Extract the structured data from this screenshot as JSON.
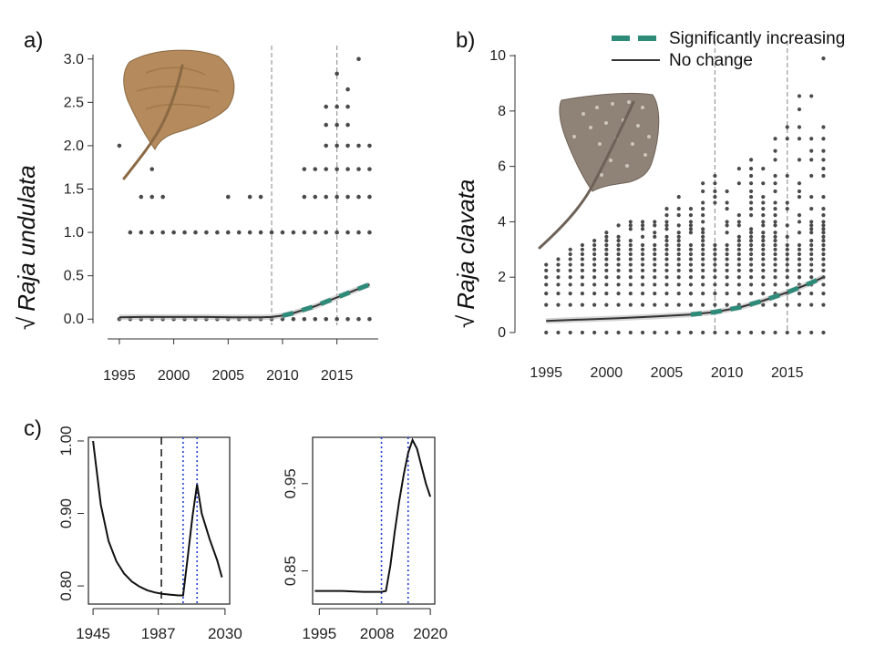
{
  "panel_labels": {
    "a": "a)",
    "b": "b)",
    "c": "c)"
  },
  "legend": {
    "increasing": "Significantly increasing",
    "no_change": "No change"
  },
  "colors": {
    "increasing": "#2e8b7a",
    "line": "#333333",
    "points": "#4a4a4a",
    "vline": "#999999",
    "c_blue": "#1f3fd6",
    "ray_undulata": "#b58a5c",
    "ray_clavata": "#8f8276"
  },
  "icons": [
    "undulate-ray-photo",
    "thornback-ray-photo"
  ],
  "chart_data": [
    {
      "id": "a",
      "type": "scatter",
      "ylabel_sym": "√",
      "ylabel": "Raja undulata",
      "xlim": [
        1994,
        2018.8
      ],
      "ylim": [
        -0.05,
        3.05
      ],
      "xticks": [
        1995,
        2000,
        2005,
        2010,
        2015
      ],
      "yticks": [
        0.0,
        0.5,
        1.0,
        1.5,
        2.0,
        2.5,
        3.0
      ],
      "ytick_labels": [
        "0.0",
        "0.5",
        "1.0",
        "1.5",
        "2.0",
        "2.5",
        "3.0"
      ],
      "vlines": [
        2009,
        2015
      ],
      "points_by_year": [
        {
          "year": 1995,
          "values": [
            0,
            2.0
          ]
        },
        {
          "year": 1996,
          "values": [
            0,
            1.0
          ]
        },
        {
          "year": 1997,
          "values": [
            0,
            1.0,
            1.41
          ]
        },
        {
          "year": 1998,
          "values": [
            0,
            1.0,
            1.41,
            1.73
          ]
        },
        {
          "year": 1999,
          "values": [
            0,
            1.0,
            1.41
          ]
        },
        {
          "year": 2000,
          "values": [
            0,
            1.0
          ]
        },
        {
          "year": 2001,
          "values": [
            0,
            1.0
          ]
        },
        {
          "year": 2002,
          "values": [
            0,
            1.0
          ]
        },
        {
          "year": 2003,
          "values": [
            0,
            1.0
          ]
        },
        {
          "year": 2004,
          "values": [
            0,
            1.0
          ]
        },
        {
          "year": 2005,
          "values": [
            0,
            1.0,
            1.41
          ]
        },
        {
          "year": 2006,
          "values": [
            0,
            1.0
          ]
        },
        {
          "year": 2007,
          "values": [
            0,
            1.0,
            1.41
          ]
        },
        {
          "year": 2008,
          "values": [
            0,
            1.0,
            1.41
          ]
        },
        {
          "year": 2009,
          "values": [
            0,
            1.0
          ]
        },
        {
          "year": 2010,
          "values": [
            0,
            1.0
          ]
        },
        {
          "year": 2011,
          "values": [
            0,
            1.0
          ]
        },
        {
          "year": 2012,
          "values": [
            0,
            1.0,
            1.41,
            1.73
          ]
        },
        {
          "year": 2013,
          "values": [
            0,
            1.0,
            1.41,
            1.73
          ]
        },
        {
          "year": 2014,
          "values": [
            0,
            1.0,
            1.41,
            1.73,
            2.0,
            2.24,
            2.45
          ]
        },
        {
          "year": 2015,
          "values": [
            0,
            1.0,
            1.41,
            1.73,
            2.0,
            2.24,
            2.45,
            2.83
          ]
        },
        {
          "year": 2016,
          "values": [
            0,
            1.0,
            1.41,
            1.73,
            2.0,
            2.24,
            2.45,
            2.65
          ]
        },
        {
          "year": 2017,
          "values": [
            0,
            1.0,
            1.41,
            1.73,
            2.0,
            3.0
          ]
        },
        {
          "year": 2018,
          "values": [
            0,
            1.0,
            1.41,
            1.73,
            2.0
          ]
        }
      ],
      "trend": {
        "x": [
          1995,
          1997,
          2000,
          2003,
          2006,
          2008,
          2009,
          2010,
          2011,
          2012,
          2013,
          2014,
          2015,
          2016,
          2017,
          2018
        ],
        "y": [
          0.02,
          0.025,
          0.025,
          0.025,
          0.02,
          0.02,
          0.025,
          0.04,
          0.07,
          0.11,
          0.15,
          0.2,
          0.25,
          0.3,
          0.35,
          0.4
        ]
      },
      "increasing_from": 2010
    },
    {
      "id": "b",
      "type": "scatter",
      "ylabel_sym": "√",
      "ylabel": "Raja clavata",
      "xlim": [
        1994,
        2018.8
      ],
      "ylim": [
        0,
        10.2
      ],
      "xticks": [
        1995,
        2000,
        2005,
        2010,
        2015
      ],
      "yticks": [
        0,
        2,
        4,
        6,
        8,
        10
      ],
      "ytick_labels": [
        "0",
        "2",
        "4",
        "6",
        "8",
        "10"
      ],
      "vlines": [
        2009,
        2015
      ],
      "trend": {
        "x": [
          1995,
          1998,
          2001,
          2004,
          2007,
          2009,
          2011,
          2013,
          2015,
          2017,
          2018
        ],
        "y": [
          0.42,
          0.47,
          0.52,
          0.58,
          0.65,
          0.74,
          0.9,
          1.15,
          1.45,
          1.8,
          2.0
        ]
      },
      "increasing_from": 2007
    },
    {
      "id": "c1",
      "type": "line",
      "xlim": [
        1942,
        2033
      ],
      "ylim": [
        0.775,
        1.005
      ],
      "xticks": [
        1945,
        1987,
        2030
      ],
      "yticks": [
        0.8,
        0.9,
        1.0
      ],
      "ytick_labels": [
        "0.80",
        "0.90",
        "1.00"
      ],
      "vlines_dashed_black": [
        1989
      ],
      "vlines_dotted_blue": [
        2003,
        2012
      ],
      "x": [
        1945,
        1950,
        1955,
        1960,
        1965,
        1970,
        1975,
        1980,
        1985,
        1990,
        1995,
        2000,
        2003,
        2006,
        2009,
        2012,
        2015,
        2020,
        2025,
        2028
      ],
      "y": [
        1.0,
        0.912,
        0.862,
        0.834,
        0.817,
        0.806,
        0.799,
        0.794,
        0.791,
        0.789,
        0.788,
        0.787,
        0.787,
        0.84,
        0.895,
        0.94,
        0.9,
        0.865,
        0.835,
        0.812
      ]
    },
    {
      "id": "c2",
      "type": "line",
      "xlim": [
        1993.5,
        2021
      ],
      "ylim": [
        0.812,
        1.003
      ],
      "xticks": [
        1995,
        2008,
        2020
      ],
      "yticks": [
        0.85,
        0.95
      ],
      "ytick_labels": [
        "0.85",
        "0.95"
      ],
      "vlines_dotted_blue": [
        2009,
        2015
      ],
      "x": [
        1994,
        2000,
        2005,
        2009,
        2010,
        2011,
        2012,
        2013,
        2014,
        2015,
        2016,
        2017,
        2018,
        2019,
        2020
      ],
      "y": [
        0.827,
        0.827,
        0.826,
        0.826,
        0.827,
        0.856,
        0.895,
        0.93,
        0.96,
        0.985,
        1.0,
        0.99,
        0.97,
        0.95,
        0.935
      ]
    }
  ]
}
